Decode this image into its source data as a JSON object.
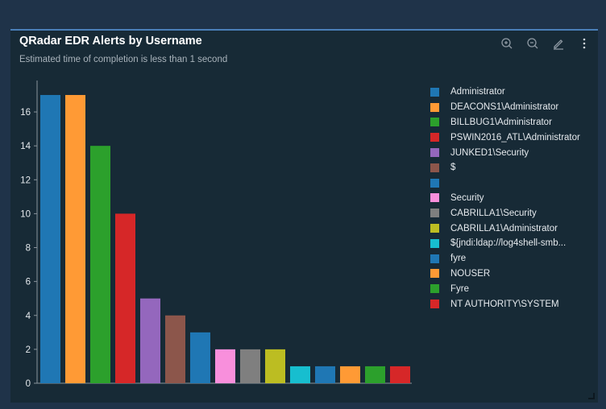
{
  "header": {
    "title": "QRadar EDR Alerts by Username",
    "subtitle": "Estimated time of completion is less than 1 second"
  },
  "toolbar": {
    "icons": [
      "zoom-in-icon",
      "zoom-out-icon",
      "edit-icon",
      "more-vertical-icon"
    ]
  },
  "chart_data": {
    "type": "bar",
    "categories": [
      "Administrator",
      "DEACONS1\\Administrator",
      "BILLBUG1\\Administrator",
      "PSWIN2016_ATL\\Administrator",
      "JUNKED1\\Security",
      "$",
      "",
      "Security",
      "CABRILLA1\\Security",
      "CABRILLA1\\Administrator",
      "${jndi:ldap://log4shell-smb...",
      "fyre",
      "NOUSER",
      "Fyre",
      "NT AUTHORITY\\SYSTEM"
    ],
    "values": [
      17,
      17,
      14,
      10,
      5,
      4,
      3,
      2,
      2,
      2,
      1,
      1,
      1,
      1,
      1
    ],
    "colors": [
      "#1f77b4",
      "#ff9a35",
      "#2ca02c",
      "#d62728",
      "#9467bd",
      "#8c564b",
      "#1f77b4",
      "#f88fdc",
      "#7f7f7f",
      "#bcbd22",
      "#17becf",
      "#1f77b4",
      "#ff9a35",
      "#2ca02c",
      "#d62728"
    ],
    "yticks": [
      0,
      2,
      4,
      6,
      8,
      10,
      12,
      14,
      16
    ],
    "ylim": [
      0,
      17
    ],
    "grid": false,
    "legend": "right"
  }
}
